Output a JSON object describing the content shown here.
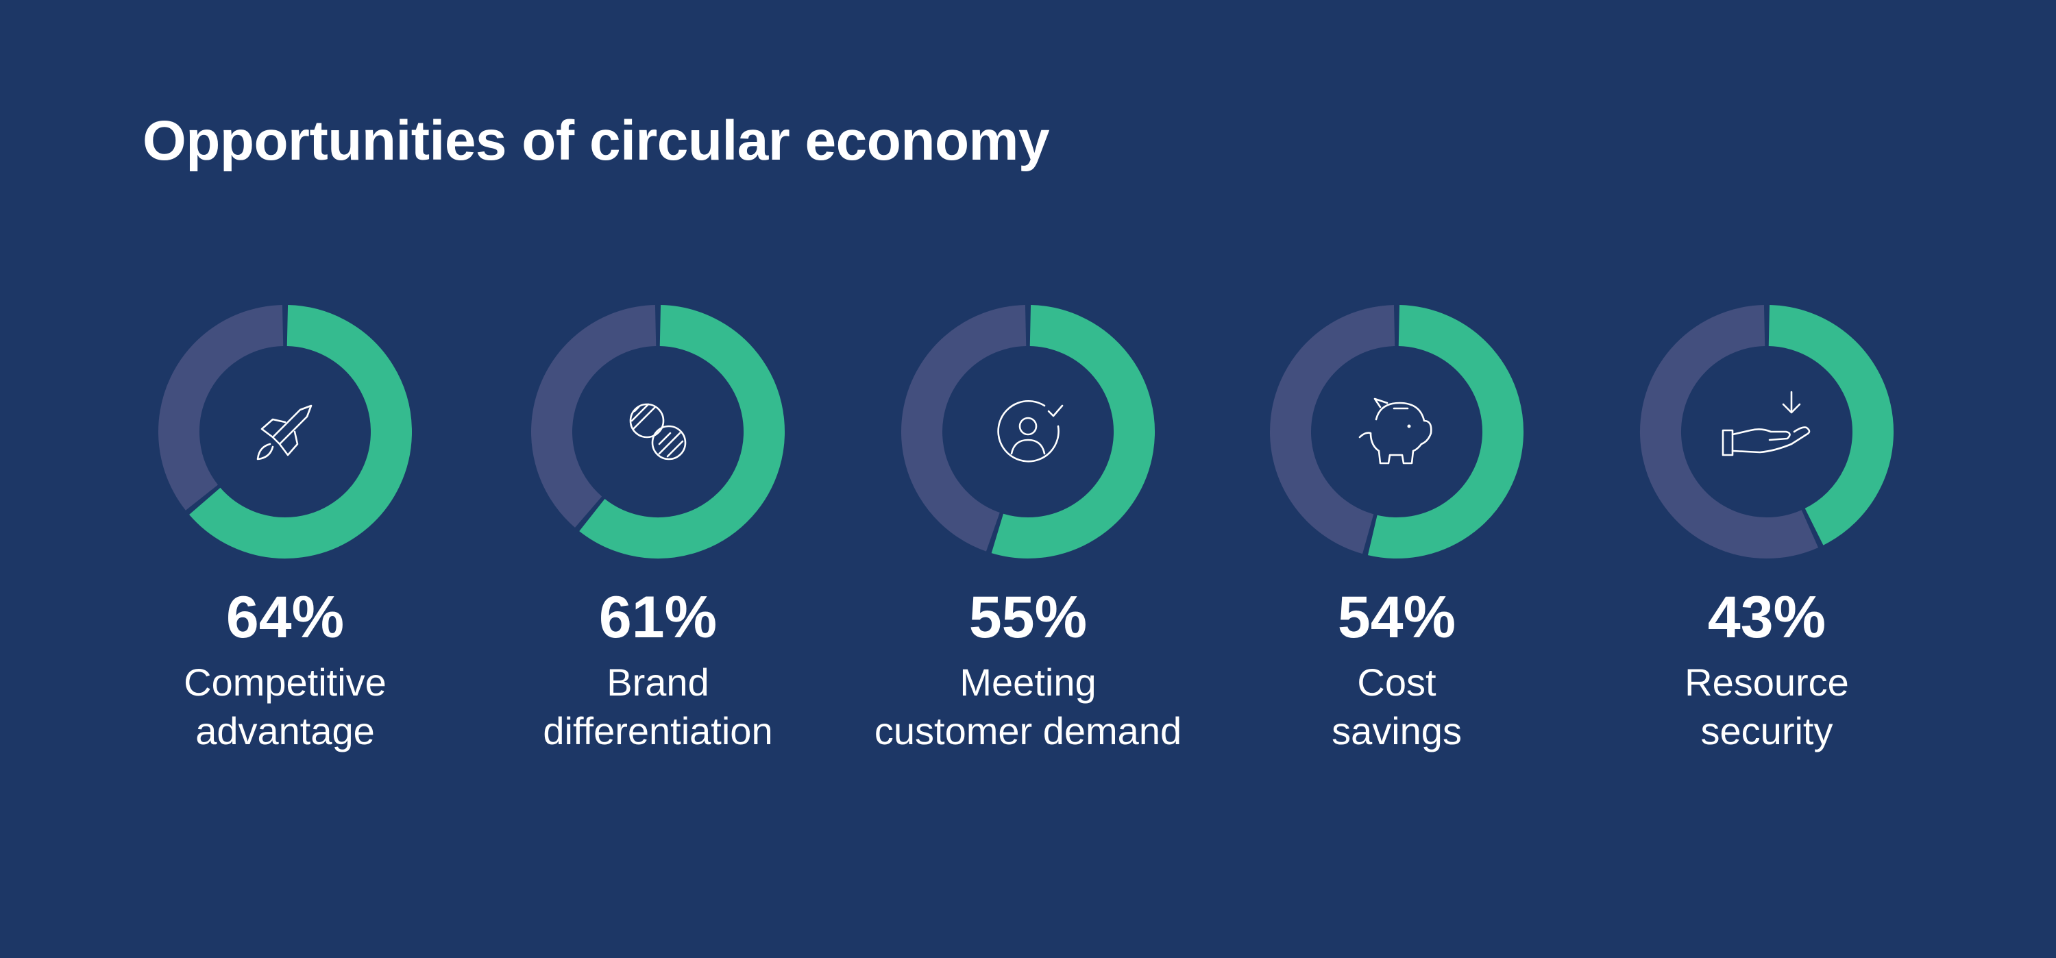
{
  "title": "Opportunities of circular economy",
  "colors": {
    "background": "#1d3766",
    "primary": "#35bb8f",
    "remainder": "#434f7e",
    "text": "#ffffff"
  },
  "chart_data": {
    "type": "pie",
    "title": "Opportunities of circular economy",
    "unit": "%",
    "max": 100,
    "categories": [
      "Competitive advantage",
      "Brand differentiation",
      "Meeting customer demand",
      "Cost savings",
      "Resource security"
    ],
    "values": [
      64,
      61,
      55,
      54,
      43
    ],
    "items": [
      {
        "percent_label": "64%",
        "value": 64,
        "label_lines": [
          "Competitive",
          "advantage"
        ],
        "icon": "rocket-icon"
      },
      {
        "percent_label": "61%",
        "value": 61,
        "label_lines": [
          "Brand",
          "differentiation"
        ],
        "icon": "overlapping-circles-icon"
      },
      {
        "percent_label": "55%",
        "value": 55,
        "label_lines": [
          "Meeting",
          "customer demand"
        ],
        "icon": "customer-check-icon"
      },
      {
        "percent_label": "54%",
        "value": 54,
        "label_lines": [
          "Cost",
          "savings"
        ],
        "icon": "piggy-bank-icon"
      },
      {
        "percent_label": "43%",
        "value": 43,
        "label_lines": [
          "Resource",
          "security"
        ],
        "icon": "hand-receive-icon"
      }
    ]
  }
}
